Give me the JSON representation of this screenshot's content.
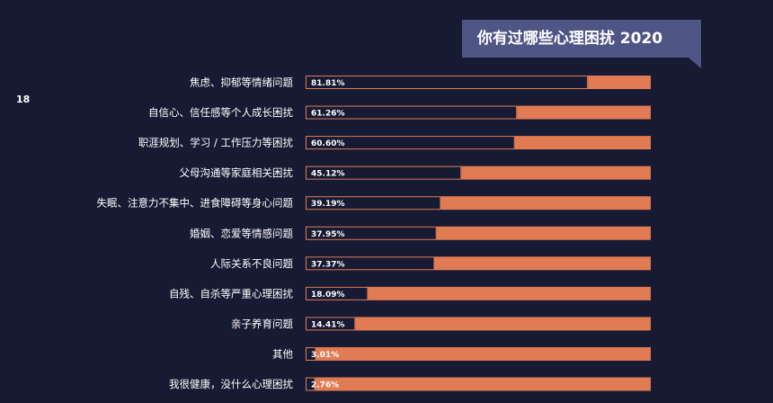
{
  "page": {
    "number": "18"
  },
  "chart_data": {
    "type": "bar",
    "orientation": "horizontal",
    "title": "你有过哪些心理困扰 2020",
    "categories": [
      "焦虑、抑郁等情绪问题",
      "自信心、信任感等个人成长困扰",
      "职涯规划、学习 / 工作压力等困扰",
      "父母沟通等家庭相关困扰",
      "失眠、注意力不集中、进食障碍等身心问题",
      "婚姻、恋爱等情感问题",
      "人际关系不良问题",
      "自残、自杀等严重心理困扰",
      "亲子养育问题",
      "其他",
      "我很健康，没什么心理困扰"
    ],
    "values": [
      81.81,
      61.26,
      60.6,
      45.12,
      39.19,
      37.95,
      37.37,
      18.09,
      14.41,
      3.01,
      2.76
    ],
    "value_labels": [
      "81.81%",
      "61.26%",
      "60.60%",
      "45.12%",
      "39.19%",
      "37.95%",
      "37.37%",
      "18.09%",
      "14.41%",
      "3.01%",
      "2.76%"
    ],
    "xlim": [
      0,
      100
    ],
    "grid": false,
    "colors": {
      "value": "#171a33",
      "remainder": "#e07b53",
      "outline": "#e07b53",
      "label_text": "#ffffff",
      "title_bg": "#4f5585",
      "background": "#171a33"
    }
  }
}
